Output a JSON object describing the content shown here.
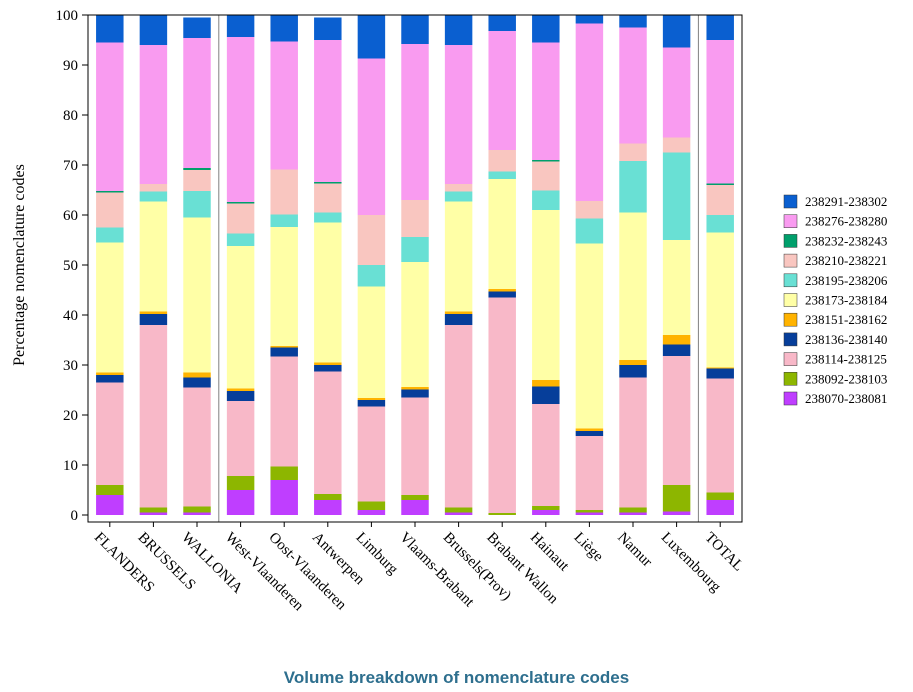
{
  "caption": "Volume breakdown of nomenclature codes",
  "chart_data": {
    "type": "bar",
    "stacked": true,
    "title": "",
    "xlabel": "",
    "ylabel": "Percentage nomenclature codes",
    "ylim": [
      0,
      100
    ],
    "yticks": [
      0,
      10,
      20,
      30,
      40,
      50,
      60,
      70,
      80,
      90,
      100
    ],
    "grid": false,
    "legend_position": "right",
    "separators_after": [
      "WALLONIA",
      "Luxembourg"
    ],
    "categories": [
      "FLANDERS",
      "BRUSSELS",
      "WALLONIA",
      "West-Vlaanderen",
      "Oost-Vlaanderen",
      "Antwerpen",
      "Limburg",
      "Vlaams-Brabant",
      "Brussels(Prov)",
      "Brabant Wallon",
      "Hainaut",
      "Liège",
      "Namur",
      "Luxembourg",
      "TOTAL"
    ],
    "series": [
      {
        "name": "238070-238081",
        "color": "#bf3eff",
        "values": [
          4.0,
          0.5,
          0.5,
          5.0,
          7.0,
          3.0,
          1.0,
          3.0,
          0.5,
          0.0,
          1.0,
          0.5,
          0.5,
          0.7,
          3.0
        ]
      },
      {
        "name": "238092-238103",
        "color": "#8db600",
        "values": [
          2.0,
          1.0,
          1.2,
          2.8,
          2.7,
          1.2,
          1.7,
          1.0,
          1.0,
          0.4,
          0.8,
          0.5,
          1.0,
          5.3,
          1.5
        ]
      },
      {
        "name": "238114-238125",
        "color": "#f8b8c8",
        "values": [
          20.5,
          36.5,
          23.8,
          15.0,
          22.0,
          24.5,
          19.0,
          19.5,
          36.5,
          43.1,
          20.4,
          14.8,
          26.0,
          25.8,
          22.8
        ]
      },
      {
        "name": "238136-238140",
        "color": "#063e9a",
        "values": [
          1.5,
          2.2,
          2.0,
          2.0,
          1.8,
          1.3,
          1.3,
          1.6,
          2.2,
          1.2,
          3.5,
          1.0,
          2.5,
          2.3,
          2.0
        ]
      },
      {
        "name": "238151-238162",
        "color": "#ffb300",
        "values": [
          0.5,
          0.5,
          1.0,
          0.5,
          0.3,
          0.5,
          0.4,
          0.5,
          0.5,
          0.5,
          1.3,
          0.5,
          1.0,
          1.9,
          0.2
        ]
      },
      {
        "name": "238173-238184",
        "color": "#ffffa6",
        "values": [
          26.0,
          22.0,
          31.0,
          28.5,
          23.8,
          28.0,
          22.3,
          25.0,
          22.0,
          22.0,
          34.0,
          37.0,
          29.5,
          19.0,
          27.0
        ]
      },
      {
        "name": "238195-238206",
        "color": "#69e0d4",
        "values": [
          3.0,
          2.0,
          5.3,
          2.5,
          2.5,
          2.0,
          4.3,
          5.0,
          2.0,
          1.5,
          3.9,
          5.0,
          10.3,
          17.5,
          3.5
        ]
      },
      {
        "name": "238210-238221",
        "color": "#f9c6c0",
        "values": [
          7.0,
          1.5,
          4.2,
          6.0,
          9.0,
          5.8,
          10.0,
          7.4,
          1.5,
          4.3,
          5.8,
          3.5,
          3.5,
          3.0,
          6.0
        ]
      },
      {
        "name": "238232-238243",
        "color": "#009f6b",
        "values": [
          0.3,
          0.0,
          0.4,
          0.3,
          0.0,
          0.3,
          0.0,
          0.0,
          0.0,
          0.0,
          0.3,
          0.0,
          0.0,
          0.0,
          0.3
        ]
      },
      {
        "name": "238276-238280",
        "color": "#f99bf0",
        "values": [
          29.7,
          27.8,
          26.0,
          33.0,
          25.6,
          28.4,
          31.3,
          31.2,
          27.8,
          23.8,
          23.5,
          35.5,
          23.2,
          18.0,
          28.7
        ]
      },
      {
        "name": "238291-238302",
        "color": "#0a5fd0",
        "values": [
          5.5,
          6.0,
          4.1,
          4.4,
          5.3,
          4.5,
          8.7,
          5.8,
          6.0,
          3.2,
          5.5,
          1.7,
          2.5,
          6.5,
          5.0
        ]
      }
    ]
  }
}
